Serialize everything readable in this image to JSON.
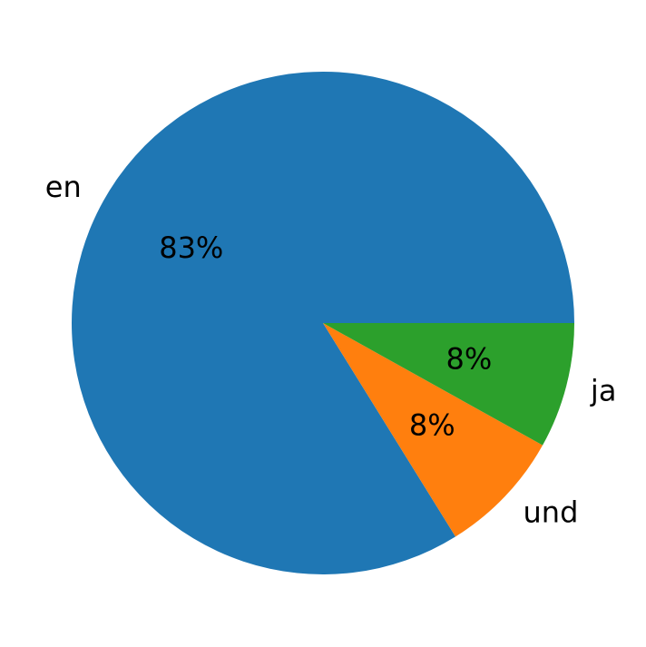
{
  "chart_data": {
    "type": "pie",
    "categories": [
      "en",
      "und",
      "ja"
    ],
    "values": [
      83,
      8,
      8
    ],
    "value_labels": [
      "83%",
      "8%",
      "8%"
    ],
    "colors": [
      "#1f77b4",
      "#ff7f0e",
      "#2ca02c"
    ]
  }
}
